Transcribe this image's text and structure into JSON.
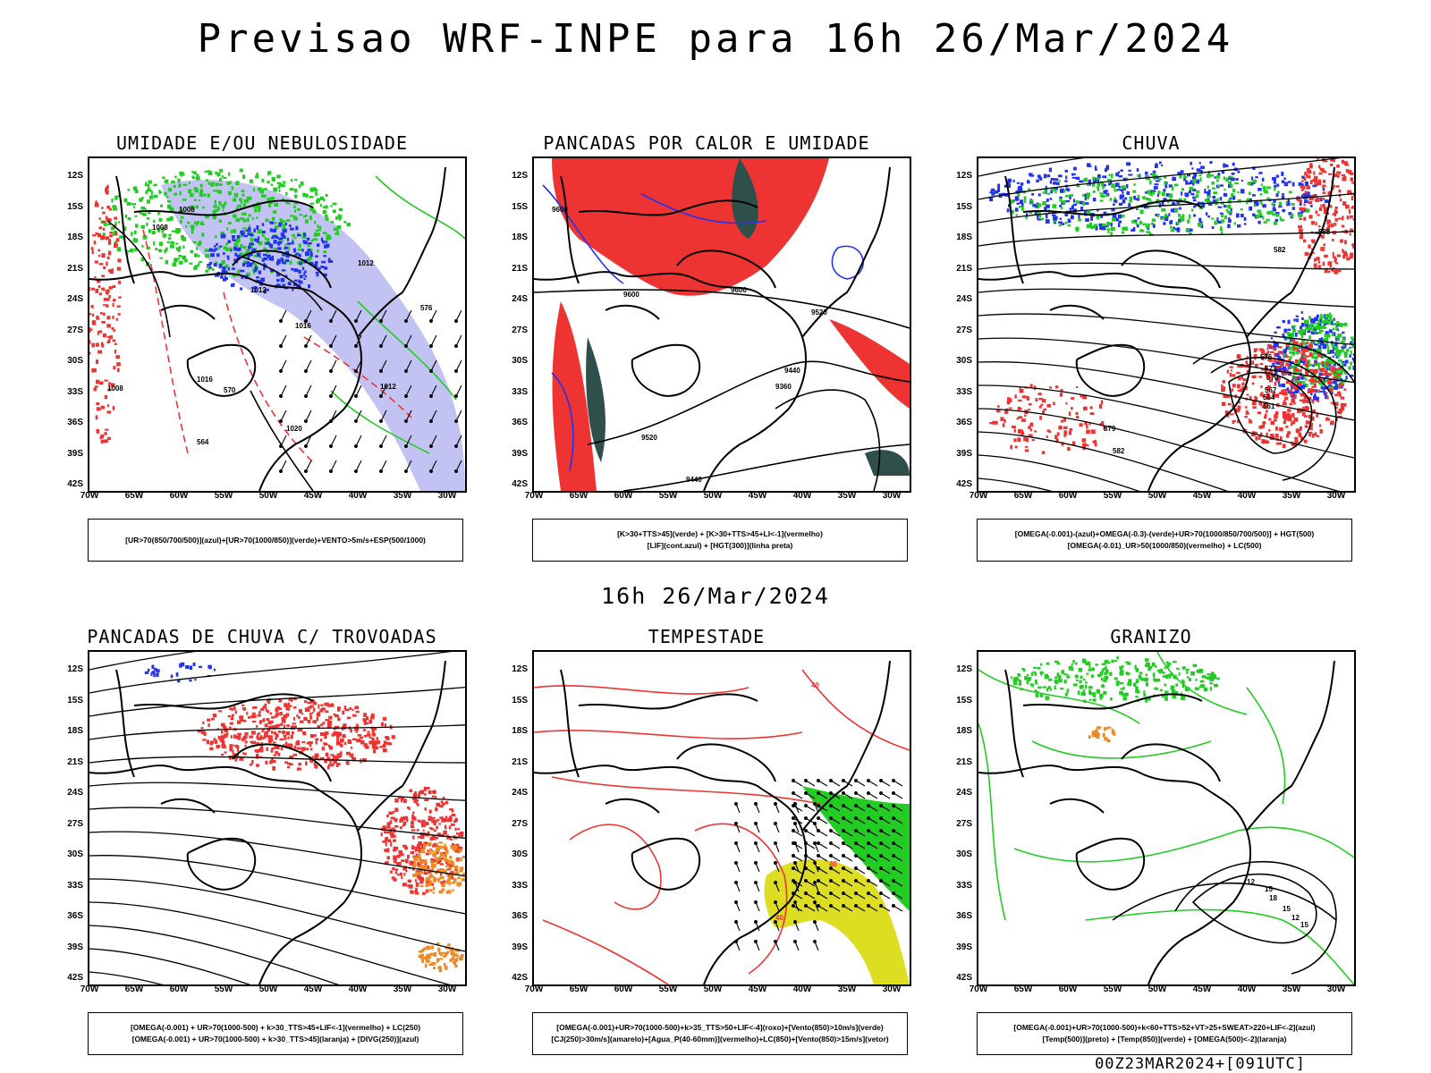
{
  "title": "Previsao WRF-INPE  para 16h 26/Mar/2024",
  "subtitle": "16h 26/Mar/2024",
  "footer": "00Z23MAR2024+[091UTC]",
  "axes": {
    "lat": [
      "12S",
      "15S",
      "18S",
      "21S",
      "24S",
      "27S",
      "30S",
      "33S",
      "36S",
      "39S",
      "42S"
    ],
    "lon": [
      "70W",
      "65W",
      "60W",
      "55W",
      "50W",
      "45W",
      "40W",
      "35W",
      "30W"
    ]
  },
  "colors": {
    "red": "#ee3333",
    "green": "#22cc22",
    "blue": "#2233ee",
    "lavender": "#aaaaee",
    "darkteal": "#2f4f4a",
    "yellow": "#dddd22",
    "orange": "#ee8822"
  },
  "panels": [
    {
      "title": "UMIDADE E/OU NEBULOSIDADE",
      "legend": [
        "[UR>70(850/700/500)](azul)+[UR>70(1000/850)](verde)+VENTO>5m/s+ESP(500/1000)"
      ],
      "labels": [
        "1008",
        "1008",
        "1012",
        "1012",
        "1016",
        "1016",
        "1020",
        "576",
        "570",
        "564",
        "1012",
        "1008"
      ]
    },
    {
      "title": "PANCADAS POR CALOR E UMIDADE",
      "legend": [
        "[K>30+TTS>45](verde) + [K>30+TTS>45+LI<-1](vermelho)",
        "[LIF](cont.azul) + [HGT(300)](linha preta)"
      ],
      "labels": [
        "9600",
        "9600",
        "9600",
        "9520",
        "9440",
        "9360",
        "9520",
        "9440"
      ]
    },
    {
      "title": "CHUVA",
      "legend": [
        "[OMEGA(-0.001)-(azul)+OMEGA(-0.3)-(verde)+UR>70(1000/850/700/500)] + HGT(500)",
        "[OMEGA(-0.01)_UR>50(1000/850)(vermelho) + LC(500)"
      ],
      "labels": [
        "582",
        "576",
        "573",
        "570",
        "567",
        "564",
        "561",
        "579",
        "582",
        "588"
      ]
    },
    {
      "title": "PANCADAS DE CHUVA C/ TROVOADAS",
      "legend": [
        "[OMEGA(-0.001) + UR>70(1000-500) + k>30_TTS>45+LIF<-1](vermelho) + LC(250)",
        "[OMEGA(-0.001) + UR>70(1000-500) + k>30_TTS>45](laranja) + [DIVG(250)](azul)"
      ],
      "labels": []
    },
    {
      "title": "TEMPESTADE",
      "legend": [
        "[OMEGA(-0.001)+UR>70(1000-500)+k>35_TTS>50+LIF<-4](roxo)+[Vento(850)>10m/s](verde)",
        "[CJ(250)>30m/s](amarelo)+[Agua_P(40-60mm)](vermelho)+LC(850)+[Vento(850)>15m/s](vetor)"
      ],
      "labels": [
        "40",
        "40",
        "40"
      ]
    },
    {
      "title": "GRANIZO",
      "legend": [
        "[OMEGA(-0.001)+UR>70(1000-500)+k<60+TTS>52+VT>25+SWEAT>220+LIF<-2](azul)",
        "[Temp(500)](preto) + [Temp(850)](verde) + [OMEGA(500)<-2](laranja)"
      ],
      "labels": [
        "12",
        "15",
        "18",
        "15",
        "12",
        "15"
      ]
    }
  ]
}
